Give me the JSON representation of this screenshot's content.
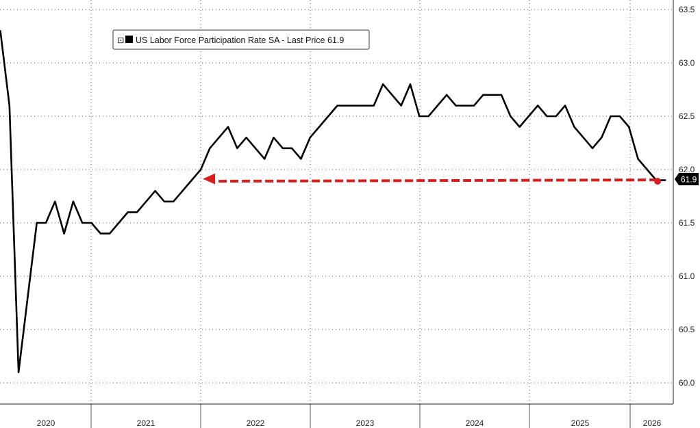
{
  "chart_data": {
    "type": "line",
    "title": "",
    "xlabel": "",
    "ylabel": "",
    "ylim": [
      59.82,
      63.55
    ],
    "y_ticks": [
      "60.0",
      "60.5",
      "61.0",
      "61.5",
      "62.0",
      "62.5",
      "63.0",
      "63.5"
    ],
    "x_ticks": [
      "2020",
      "2021",
      "2022",
      "2023",
      "2024",
      "2025",
      "2026"
    ],
    "grid": true,
    "legend_position": "top-left",
    "legend": {
      "label": "US Labor Force Participation Rate SA - Last Price 61.9",
      "collapse_marker": "⊡"
    },
    "last_value_label": "61.9",
    "colors": {
      "line": "#000000",
      "annotation": "#d42020",
      "grid": "#555555"
    },
    "series": [
      {
        "name": "US Labor Force Participation Rate SA",
        "x": [
          "2020-01",
          "2020-02",
          "2020-03",
          "2020-04",
          "2020-05",
          "2020-06",
          "2020-07",
          "2020-08",
          "2020-09",
          "2020-10",
          "2020-11",
          "2020-12",
          "2021-01",
          "2021-02",
          "2021-03",
          "2021-04",
          "2021-05",
          "2021-06",
          "2021-07",
          "2021-08",
          "2021-09",
          "2021-10",
          "2021-11",
          "2021-12",
          "2022-01",
          "2022-02",
          "2022-03",
          "2022-04",
          "2022-05",
          "2022-06",
          "2022-07",
          "2022-08",
          "2022-09",
          "2022-10",
          "2022-11",
          "2022-12",
          "2023-01",
          "2023-02",
          "2023-03",
          "2023-04",
          "2023-05",
          "2023-06",
          "2023-07",
          "2023-08",
          "2023-09",
          "2023-10",
          "2023-11",
          "2023-12",
          "2024-01",
          "2024-02",
          "2024-03",
          "2024-04",
          "2024-05",
          "2024-06",
          "2024-07",
          "2024-08",
          "2024-09",
          "2024-10",
          "2024-11",
          "2024-12",
          "2025-01",
          "2025-02",
          "2025-03",
          "2025-04",
          "2025-05",
          "2025-06",
          "2025-07",
          "2025-08",
          "2025-09",
          "2025-10",
          "2025-11",
          "2025-12",
          "2026-01",
          "2026-02"
        ],
        "y": [
          63.3,
          62.6,
          60.1,
          60.8,
          61.5,
          61.5,
          61.7,
          61.4,
          61.7,
          61.5,
          61.5,
          61.4,
          61.4,
          61.5,
          61.6,
          61.6,
          61.7,
          61.8,
          61.7,
          61.7,
          61.8,
          61.9,
          62.0,
          62.2,
          62.3,
          62.4,
          62.2,
          62.3,
          62.2,
          62.1,
          62.3,
          62.2,
          62.2,
          62.1,
          62.3,
          62.4,
          62.5,
          62.6,
          62.6,
          62.6,
          62.6,
          62.6,
          62.8,
          62.7,
          62.6,
          62.8,
          62.5,
          62.5,
          62.6,
          62.7,
          62.6,
          62.6,
          62.6,
          62.7,
          62.7,
          62.7,
          62.5,
          62.4,
          62.5,
          62.6,
          62.5,
          62.5,
          62.6,
          62.4,
          62.3,
          62.2,
          62.3,
          62.5,
          62.5,
          62.4,
          62.1,
          62.0,
          61.9,
          61.9
        ],
        "color": "#000000"
      }
    ],
    "annotations": [
      {
        "type": "horizontal-arrow",
        "from_x": "2026-01",
        "to_x": "2021-11",
        "y": 61.9,
        "color": "#d42020"
      }
    ]
  }
}
